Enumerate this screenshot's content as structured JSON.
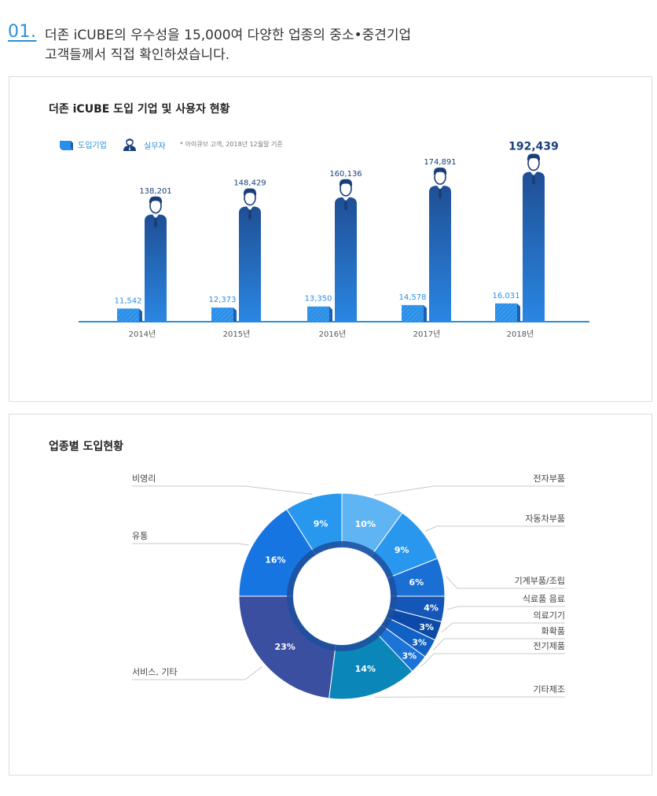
{
  "heading": {
    "number": "01.",
    "line1": "더존 iCUBE의 우수성을 15,000여 다양한 업종의 중소•중견기업",
    "line2": "고객들께서 직접 확인하셨습니다."
  },
  "colors": {
    "company_bar": "#2a8fe8",
    "user_bar_top": "#1f4f95",
    "user_bar_bottom": "#2a86e2",
    "axis": "#2b8fd8",
    "person_dark": "#1a3f78",
    "highlight_label": "#1a3f78"
  },
  "chart_data": [
    {
      "type": "bar",
      "title": "더존 iCUBE 도입 기업 및 사용자 현황",
      "legend": {
        "company": "도입기업",
        "user": "실무자",
        "note": "* 아이큐브 고객, 2018년 12월말 기준"
      },
      "categories": [
        "2014년",
        "2015년",
        "2016년",
        "2017년",
        "2018년"
      ],
      "series": [
        {
          "name": "도입기업",
          "values": [
            11542,
            12373,
            13350,
            14578,
            16031
          ],
          "labels": [
            "11,542",
            "12,373",
            "13,350",
            "14,578",
            "16,031"
          ]
        },
        {
          "name": "실무자",
          "values": [
            138201,
            148429,
            160136,
            174891,
            192439
          ],
          "labels": [
            "138,201",
            "148,429",
            "160,136",
            "174,891",
            "192,439"
          ]
        }
      ]
    },
    {
      "type": "pie",
      "title": "업종별 도입현황",
      "slices": [
        {
          "name": "전자부품",
          "value": 10,
          "label": "10%",
          "color": "#5fb4f4"
        },
        {
          "name": "자동차부품",
          "value": 9,
          "label": "9%",
          "color": "#2a97ef"
        },
        {
          "name": "기계부품/조립",
          "value": 6,
          "label": "6%",
          "color": "#1a6fd4"
        },
        {
          "name": "식료품 음료",
          "value": 4,
          "label": "4%",
          "color": "#1457b8"
        },
        {
          "name": "의료기기",
          "value": 3,
          "label": "3%",
          "color": "#0d4aa8"
        },
        {
          "name": "화확품",
          "value": 3,
          "label": "3%",
          "color": "#1160c4"
        },
        {
          "name": "전기제품",
          "value": 3,
          "label": "3%",
          "color": "#1c74d6"
        },
        {
          "name": "기타제조",
          "value": 14,
          "label": "14%",
          "color": "#0b86b8"
        },
        {
          "name": "서비스, 기타",
          "value": 23,
          "label": "23%",
          "color": "#3b4fa1"
        },
        {
          "name": "유통",
          "value": 16,
          "label": "16%",
          "color": "#1775e2"
        },
        {
          "name": "비영리",
          "value": 9,
          "label": "9%",
          "color": "#2898ef"
        }
      ]
    }
  ]
}
